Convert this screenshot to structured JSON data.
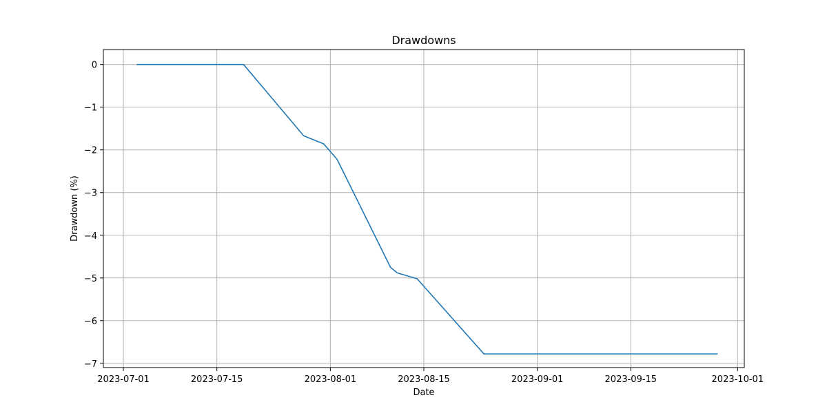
{
  "chart_data": {
    "type": "line",
    "title": "Drawdowns",
    "xlabel": "Date",
    "ylabel": "Drawdown (%)",
    "grid": true,
    "x_axis_type": "date",
    "xlim": [
      "2023-06-28",
      "2023-10-02"
    ],
    "ylim": [
      -7.1,
      0.35
    ],
    "x_ticks": [
      "2023-07-01",
      "2023-07-15",
      "2023-08-01",
      "2023-08-15",
      "2023-09-01",
      "2023-09-15",
      "2023-10-01"
    ],
    "y_ticks": [
      0,
      -1,
      -2,
      -3,
      -4,
      -5,
      -6,
      -7
    ],
    "y_tick_labels": [
      "0",
      "−1",
      "−2",
      "−3",
      "−4",
      "−5",
      "−6",
      "−7"
    ],
    "series_color": "#1f77b4",
    "series": [
      {
        "x": [
          "2023-07-03",
          "2023-07-19",
          "2023-07-28",
          "2023-07-31",
          "2023-08-02",
          "2023-08-10",
          "2023-08-11",
          "2023-08-14",
          "2023-08-24",
          "2023-09-28"
        ],
        "values": [
          0,
          0,
          -1.67,
          -1.86,
          -2.22,
          -4.75,
          -4.88,
          -5.02,
          -6.78,
          -6.78
        ]
      }
    ]
  }
}
